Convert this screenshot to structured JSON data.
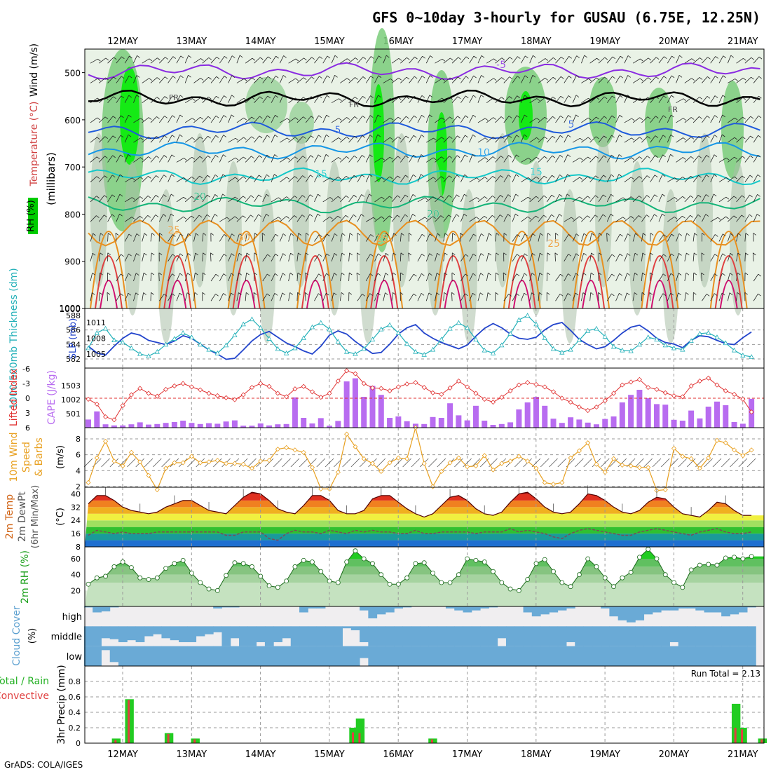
{
  "title": "GFS 0~10day 3-hourly for GUSAU (6.75E, 12.25N)",
  "footer": "GrADS: COLA/IGES",
  "run_total": "Run Total = 2.13",
  "dates": [
    "12MAY",
    "13MAY",
    "14MAY",
    "15MAY",
    "16MAY",
    "17MAY",
    "18MAY",
    "19MAY",
    "20MAY",
    "21MAY"
  ],
  "chart_data": [
    {
      "type": "heatmap",
      "name": "upper-air",
      "ylabel_rh": "RH (%)",
      "ylabel_temp": "Temperature (°C)",
      "ylabel_wind": "Wind (m/s)",
      "ylabel_p": "(millibars)",
      "y_ticks": [
        "500",
        "600",
        "700",
        "800",
        "900",
        "1000"
      ],
      "ylim": [
        1000,
        450
      ],
      "contour_labels": [
        "-5",
        "FR",
        "FR",
        "FR",
        "5",
        "5",
        "10",
        "15",
        "15",
        "20",
        "20",
        "25",
        "25",
        "30",
        "25"
      ],
      "temp_levels": [
        {
          "label": "-5",
          "p": 497,
          "color": "#8a2be2"
        },
        {
          "label": "FR",
          "p": 555,
          "color": "#000000"
        },
        {
          "label": "5",
          "p": 622,
          "color": "#1e5adc"
        },
        {
          "label": "10",
          "p": 665,
          "color": "#1496e6"
        },
        {
          "label": "15",
          "p": 720,
          "color": "#14c8c8"
        },
        {
          "label": "20",
          "p": 780,
          "color": "#14b478"
        }
      ]
    },
    {
      "type": "line",
      "name": "thickness-slp",
      "ylabel_left": "1000-500mb Thickness (dm)",
      "ylabel_right": "SLP (mb)",
      "left_ticks": [
        "588",
        "586",
        "584",
        "582"
      ],
      "right_ticks": [
        "1011",
        "1008",
        "1005"
      ],
      "thickness_dm": [
        583.5,
        585.6,
        586.2,
        584.6,
        584.3,
        583.5,
        582.7,
        582.4,
        583.0,
        584.0,
        584.8,
        585.6,
        585.0,
        584.0,
        583.3,
        582.8,
        583.9,
        585.3,
        586.8,
        587.5,
        586.3,
        584.8,
        583.4,
        582.8,
        583.5,
        584.9,
        586.4,
        587.0,
        586.1,
        584.4,
        583.0,
        582.7,
        583.4,
        584.7,
        586.1,
        586.7,
        585.6,
        584.1,
        583.0,
        582.6,
        583.3,
        584.7,
        586.2,
        587.0,
        586.3,
        584.7,
        583.2,
        582.8,
        583.9,
        585.5,
        587.4,
        588.0,
        586.8,
        584.9,
        583.4,
        582.9,
        583.3,
        584.6,
        585.9,
        586.2,
        585.1,
        583.7,
        583.2,
        583.1,
        584.0,
        585.0,
        584.7,
        583.9,
        583.5,
        583.3,
        584.5,
        585.5,
        585.6,
        585.0,
        584.2,
        583.2,
        582.5,
        582.3
      ],
      "slp_mb": [
        1006.5,
        1005.2,
        1004.8,
        1006.5,
        1008.0,
        1009.0,
        1008.6,
        1007.6,
        1007.2,
        1006.8,
        1007.5,
        1008.5,
        1008.0,
        1006.9,
        1005.8,
        1005.0,
        1004.0,
        1004.2,
        1005.8,
        1007.5,
        1008.7,
        1009.3,
        1008.2,
        1007.1,
        1006.4,
        1005.6,
        1005.0,
        1006.5,
        1008.6,
        1009.4,
        1008.8,
        1007.4,
        1006.2,
        1005.1,
        1005.3,
        1006.9,
        1008.8,
        1010.0,
        1010.6,
        1009.0,
        1008.0,
        1007.2,
        1006.6,
        1006.0,
        1006.7,
        1008.4,
        1009.9,
        1010.8,
        1010.0,
        1008.8,
        1008.0,
        1007.8,
        1008.2,
        1009.6,
        1010.6,
        1011.0,
        1009.5,
        1007.8,
        1006.8,
        1006.0,
        1006.4,
        1007.6,
        1009.0,
        1010.1,
        1010.5,
        1009.4,
        1008.0,
        1007.2,
        1006.9,
        1006.2,
        1007.6,
        1008.5,
        1008.3,
        1007.6,
        1007.0,
        1006.8,
        1008.1,
        1009.2
      ]
    },
    {
      "type": "bar",
      "name": "lifted-index-cape",
      "ylabel_left": "Lifted Index",
      "ylabel_right": "CAPE (J/kg)",
      "left_ticks": [
        "-6",
        "-3",
        "0",
        "3",
        "6"
      ],
      "right_ticks": [
        "1503",
        "1002",
        "501"
      ],
      "cape_jkg": [
        290,
        580,
        120,
        80,
        80,
        120,
        190,
        110,
        130,
        170,
        200,
        250,
        170,
        130,
        160,
        140,
        220,
        260,
        70,
        70,
        150,
        80,
        120,
        130,
        1080,
        350,
        150,
        340,
        70,
        240,
        1650,
        1760,
        1100,
        1490,
        1170,
        350,
        400,
        230,
        140,
        130,
        380,
        350,
        870,
        440,
        260,
        780,
        250,
        100,
        130,
        190,
        650,
        900,
        1100,
        780,
        320,
        170,
        370,
        290,
        180,
        120,
        310,
        400,
        900,
        1170,
        1350,
        1050,
        840,
        820,
        280,
        250,
        610,
        330,
        750,
        930,
        800,
        200,
        140,
        1030
      ],
      "lifted_index": [
        0.2,
        1.2,
        3.8,
        4.4,
        1.5,
        -0.7,
        -2.0,
        -1.0,
        -0.4,
        -1.8,
        -2.5,
        -3.0,
        -2.3,
        -1.7,
        -1.0,
        -0.5,
        -0.1,
        0.3,
        -0.7,
        -2.2,
        -3.0,
        -2.4,
        -1.0,
        -0.3,
        -1.9,
        -2.4,
        -1.3,
        -0.2,
        -1.0,
        -3.5,
        -5.6,
        -5.0,
        -3.0,
        -2.1,
        -2.0,
        -1.5,
        -2.3,
        -2.9,
        -3.2,
        -2.2,
        -1.1,
        -0.8,
        -2.1,
        -3.5,
        -2.3,
        -1.0,
        0.2,
        0.8,
        -0.2,
        -1.5,
        -2.7,
        -3.2,
        -2.8,
        -2.3,
        -1.3,
        0.0,
        0.8,
        1.8,
        2.5,
        1.8,
        0.5,
        -1.0,
        -2.7,
        -3.3,
        -3.8,
        -2.2,
        -1.8,
        -1.1,
        -0.5,
        -0.3,
        -2.5,
        -3.5,
        -4.1,
        -2.7,
        -1.5,
        -0.8,
        0.2,
        2.8
      ]
    },
    {
      "type": "line",
      "name": "10m-wind",
      "ylabel": "10m Wind Speed & Barbs (m/s)",
      "y_ticks": [
        "8",
        "6",
        "4",
        "2"
      ],
      "wind_speed_ms": [
        2.5,
        5.6,
        7.7,
        5.2,
        4.6,
        6.3,
        5.1,
        3.4,
        1.6,
        4.3,
        5.0,
        5.0,
        5.8,
        5.0,
        5.1,
        5.3,
        4.9,
        4.9,
        4.8,
        4.3,
        5.2,
        5.3,
        6.7,
        6.9,
        6.6,
        6.3,
        4.4,
        1.7,
        1.7,
        3.8,
        8.6,
        7.0,
        5.5,
        4.9,
        3.9,
        5.0,
        5.6,
        5.5,
        9.4,
        4.9,
        2.0,
        3.9,
        5.0,
        5.6,
        4.5,
        4.6,
        5.9,
        4.1,
        4.9,
        5.2,
        5.8,
        5.2,
        4.3,
        2.5,
        2.3,
        2.5,
        5.6,
        6.5,
        7.5,
        4.8,
        3.8,
        5.5,
        4.7,
        4.6,
        4.4,
        4.4,
        1.5,
        1.6,
        6.8,
        5.8,
        5.5,
        4.3,
        5.6,
        7.8,
        7.5,
        6.6,
        5.9,
        6.6
      ]
    },
    {
      "type": "area",
      "name": "2m-temperature",
      "ylabel": "2m Temp 2m DewPt (6hr Min/Max) (°C)",
      "y_ticks": [
        "40",
        "32",
        "24",
        "16",
        "8"
      ],
      "temp_c": [
        34,
        39,
        39,
        36,
        32,
        30,
        29,
        28,
        29,
        32,
        34,
        36,
        36,
        33,
        30,
        29,
        28,
        33,
        38,
        41,
        40,
        36,
        31,
        29,
        28,
        33,
        39,
        39,
        36,
        30,
        28,
        28,
        30,
        37,
        39,
        39,
        35,
        31,
        28,
        26,
        28,
        33,
        38,
        39,
        36,
        31,
        28,
        27,
        29,
        35,
        40,
        41,
        37,
        32,
        29,
        28,
        29,
        34,
        40,
        39,
        36,
        32,
        29,
        28,
        30,
        35,
        38,
        37,
        32,
        28,
        27,
        26,
        30,
        35,
        34,
        30,
        27,
        27
      ],
      "dewpoint_c": [
        15,
        18,
        17,
        16,
        17,
        16,
        16,
        16,
        17,
        17,
        17,
        17,
        17,
        17,
        17,
        17,
        15,
        15,
        17,
        17,
        17,
        13,
        12,
        16,
        18,
        17,
        17,
        16,
        18,
        17,
        16,
        18,
        17,
        18,
        17,
        17,
        16,
        16,
        18,
        16,
        16,
        17,
        17,
        17,
        17,
        16,
        17,
        17,
        17,
        19,
        17,
        18,
        17,
        16,
        14,
        13,
        16,
        18,
        19,
        18,
        17,
        16,
        15,
        15,
        17,
        18,
        19,
        18,
        17,
        16,
        15,
        17,
        18,
        19,
        17,
        16,
        16,
        17
      ]
    },
    {
      "type": "area",
      "name": "2m-rh",
      "ylabel": "2m RH (%)",
      "y_ticks": [
        "60",
        "40",
        "20"
      ],
      "rh_pct": [
        28,
        36,
        38,
        50,
        56,
        49,
        36,
        34,
        36,
        48,
        54,
        58,
        42,
        30,
        22,
        20,
        39,
        55,
        54,
        50,
        38,
        26,
        24,
        32,
        50,
        58,
        56,
        44,
        32,
        30,
        56,
        70,
        60,
        54,
        40,
        28,
        28,
        36,
        54,
        55,
        42,
        30,
        30,
        40,
        60,
        58,
        56,
        44,
        30,
        22,
        20,
        34,
        54,
        59,
        44,
        30,
        25,
        40,
        60,
        50,
        36,
        25,
        36,
        43,
        62,
        72,
        60,
        40,
        30,
        24,
        46,
        52,
        53,
        52,
        61,
        62,
        60,
        63
      ]
    },
    {
      "type": "bar",
      "name": "cloud-cover",
      "ylabel": "Cloud Cover (%)",
      "levels": [
        "high",
        "middle",
        "low"
      ],
      "high_pct": [
        5,
        30,
        25,
        5,
        0,
        0,
        0,
        0,
        0,
        0,
        0,
        0,
        0,
        0,
        0,
        10,
        5,
        5,
        0,
        0,
        0,
        0,
        0,
        0,
        0,
        30,
        10,
        10,
        0,
        0,
        0,
        0,
        20,
        60,
        40,
        30,
        10,
        5,
        0,
        0,
        0,
        0,
        10,
        20,
        30,
        20,
        10,
        5,
        0,
        0,
        0,
        30,
        50,
        40,
        30,
        20,
        10,
        0,
        0,
        0,
        10,
        50,
        70,
        80,
        70,
        40,
        30,
        20,
        20,
        10,
        10,
        20,
        30,
        30,
        50,
        40,
        30,
        5
      ],
      "middle_pct": [
        100,
        100,
        60,
        65,
        80,
        70,
        80,
        50,
        40,
        60,
        70,
        80,
        80,
        50,
        40,
        30,
        100,
        60,
        100,
        100,
        80,
        100,
        80,
        60,
        100,
        100,
        100,
        100,
        100,
        100,
        10,
        20,
        80,
        100,
        100,
        100,
        100,
        100,
        100,
        100,
        100,
        100,
        100,
        100,
        100,
        100,
        100,
        100,
        60,
        100,
        100,
        100,
        100,
        100,
        100,
        100,
        80,
        100,
        100,
        100,
        100,
        100,
        100,
        100,
        100,
        100,
        100,
        100,
        80,
        100,
        100,
        100,
        100,
        100,
        100,
        100,
        100,
        100
      ],
      "low_pct": [
        100,
        100,
        20,
        80,
        100,
        100,
        100,
        100,
        100,
        100,
        100,
        100,
        100,
        100,
        100,
        100,
        100,
        100,
        100,
        100,
        100,
        100,
        100,
        100,
        100,
        100,
        100,
        100,
        100,
        100,
        100,
        100,
        60,
        100,
        100,
        100,
        100,
        100,
        100,
        100,
        100,
        100,
        100,
        100,
        100,
        100,
        100,
        100,
        100,
        100,
        100,
        100,
        100,
        100,
        100,
        100,
        100,
        100,
        100,
        100,
        100,
        100,
        100,
        100,
        100,
        100,
        100,
        100,
        100,
        100,
        100,
        100,
        100,
        100,
        100,
        100,
        100,
        100
      ]
    },
    {
      "type": "bar",
      "name": "3hr-precip",
      "ylabel_left": "Total / Rain",
      "ylabel_left2": "Convective",
      "ylabel": "3hr Precip (mm)",
      "y_ticks": [
        "0.8",
        "0.6",
        "0.4",
        "0.2",
        "0"
      ],
      "ylim": [
        0,
        1.0
      ],
      "total_mm": [
        0,
        0,
        0,
        0,
        0.06,
        0,
        0.57,
        0,
        0,
        0,
        0,
        0,
        0.13,
        0,
        0,
        0,
        0.06,
        0,
        0,
        0,
        0,
        0,
        0,
        0,
        0,
        0,
        0,
        0,
        0,
        0,
        0,
        0,
        0,
        0,
        0,
        0,
        0,
        0,
        0,
        0,
        0.2,
        0.32,
        0,
        0,
        0,
        0,
        0,
        0,
        0,
        0,
        0,
        0,
        0.06,
        0,
        0,
        0,
        0,
        0,
        0,
        0,
        0,
        0,
        0,
        0,
        0,
        0,
        0,
        0,
        0,
        0,
        0,
        0,
        0,
        0,
        0,
        0,
        0,
        0,
        0,
        0,
        0,
        0,
        0,
        0,
        0,
        0,
        0,
        0,
        0,
        0,
        0,
        0,
        0,
        0,
        0,
        0,
        0,
        0,
        0.51,
        0.2,
        0,
        0,
        0.06
      ],
      "convective_mm": [
        0,
        0,
        0,
        0,
        0.04,
        0,
        0.56,
        0,
        0,
        0,
        0,
        0,
        0.12,
        0,
        0,
        0,
        0.05,
        0,
        0,
        0,
        0,
        0,
        0,
        0,
        0,
        0,
        0,
        0,
        0,
        0,
        0,
        0,
        0,
        0,
        0,
        0,
        0,
        0,
        0,
        0,
        0.14,
        0.13,
        0,
        0,
        0,
        0,
        0,
        0,
        0,
        0,
        0,
        0,
        0.05,
        0,
        0,
        0,
        0,
        0,
        0,
        0,
        0,
        0,
        0,
        0,
        0,
        0,
        0,
        0,
        0,
        0,
        0,
        0,
        0,
        0,
        0,
        0,
        0,
        0,
        0,
        0,
        0,
        0,
        0,
        0,
        0,
        0,
        0,
        0,
        0,
        0,
        0,
        0,
        0,
        0,
        0,
        0,
        0,
        0,
        0.2,
        0.18,
        0,
        0,
        0.05
      ]
    }
  ]
}
